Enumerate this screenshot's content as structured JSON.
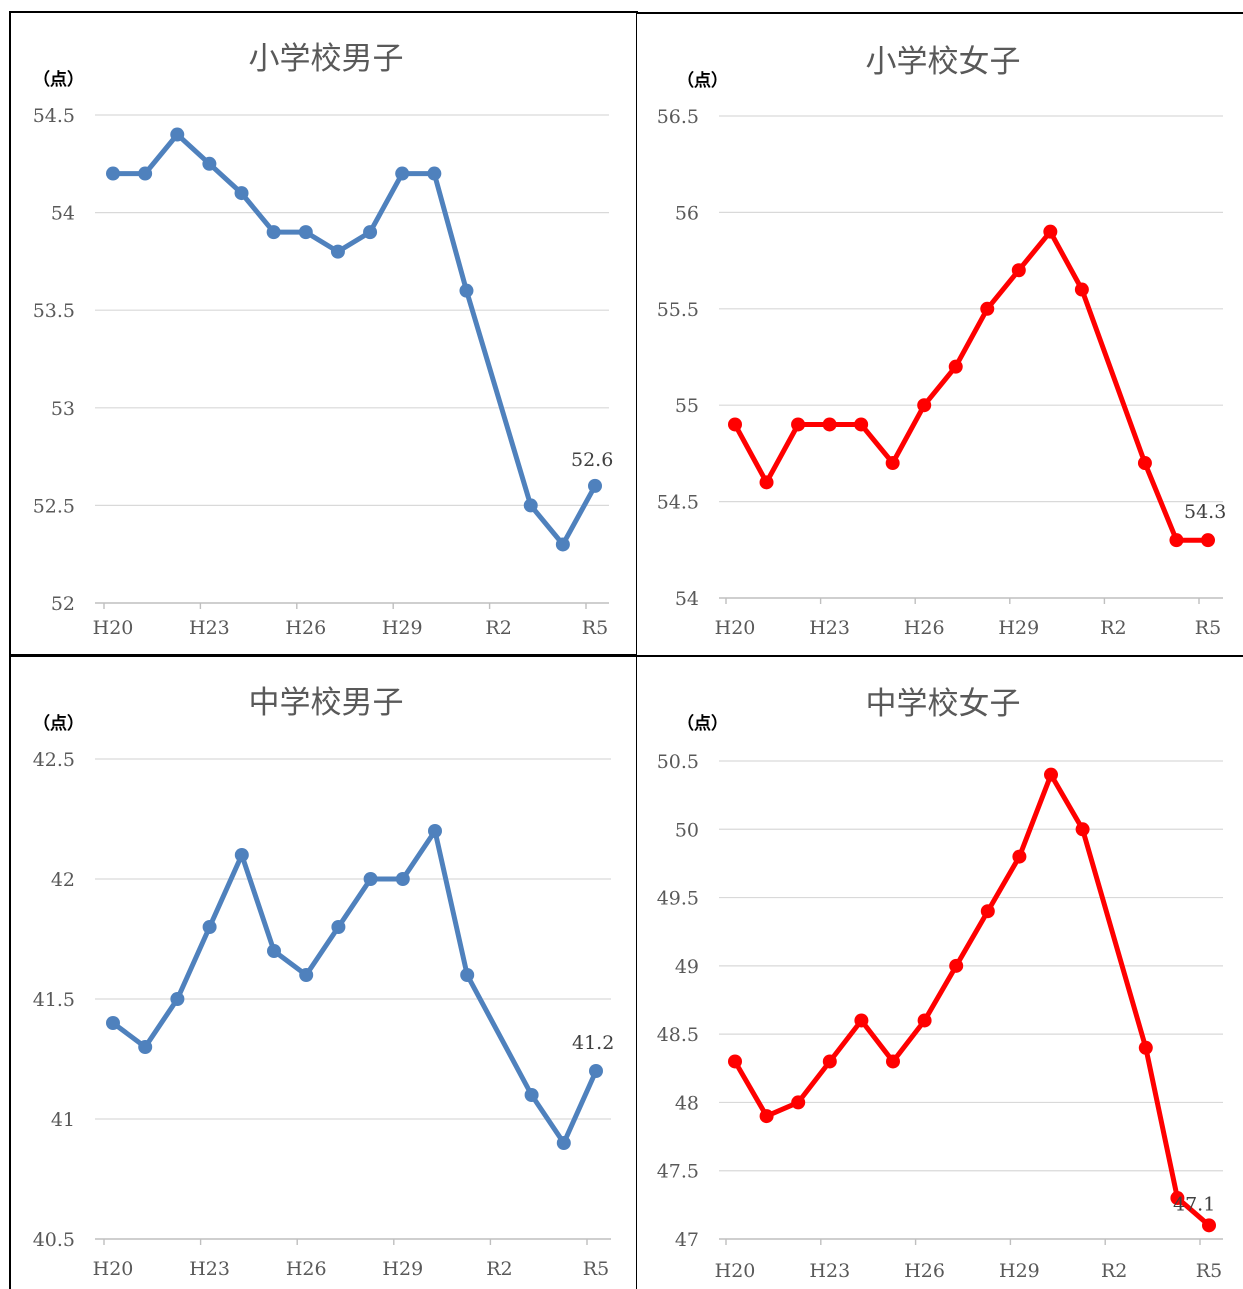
{
  "chart_data": [
    {
      "type": "line",
      "title": "小学校男子",
      "unit": "（点）",
      "color": "#4F81BD",
      "x": [
        "H20",
        "H21",
        "H22",
        "H23",
        "H24",
        "H25",
        "H26",
        "H27",
        "H28",
        "H29",
        "H30",
        "R1",
        "R2",
        "R3",
        "R4",
        "R5"
      ],
      "y": [
        54.2,
        54.2,
        54.4,
        54.25,
        54.1,
        53.9,
        53.9,
        53.8,
        53.9,
        54.2,
        54.2,
        53.6,
        null,
        52.5,
        52.3,
        52.6
      ],
      "xtick_labels": [
        "H20",
        "H23",
        "H26",
        "H29",
        "R2",
        "R5"
      ],
      "ytick_labels": [
        "52",
        "52.5",
        "53",
        "53.5",
        "54",
        "54.5"
      ],
      "ylim": [
        52,
        54.5
      ],
      "end_label": "52.6",
      "grid": true,
      "legend": false
    },
    {
      "type": "line",
      "title": "小学校女子",
      "unit": "（点）",
      "color": "#FF0000",
      "x": [
        "H20",
        "H21",
        "H22",
        "H23",
        "H24",
        "H25",
        "H26",
        "H27",
        "H28",
        "H29",
        "H30",
        "R1",
        "R2",
        "R3",
        "R4",
        "R5"
      ],
      "y": [
        54.9,
        54.6,
        54.9,
        54.9,
        54.9,
        54.7,
        55.0,
        55.2,
        55.5,
        55.7,
        55.9,
        55.6,
        null,
        54.7,
        54.3,
        54.3
      ],
      "xtick_labels": [
        "H20",
        "H23",
        "H26",
        "H29",
        "R2",
        "R5"
      ],
      "ytick_labels": [
        "54",
        "54.5",
        "55",
        "55.5",
        "56",
        "56.5"
      ],
      "ylim": [
        54,
        56.5
      ],
      "end_label": "54.3",
      "grid": true,
      "legend": false
    },
    {
      "type": "line",
      "title": "中学校男子",
      "unit": "（点）",
      "color": "#4F81BD",
      "x": [
        "H20",
        "H21",
        "H22",
        "H23",
        "H24",
        "H25",
        "H26",
        "H27",
        "H28",
        "H29",
        "H30",
        "R1",
        "R2",
        "R3",
        "R4",
        "R5"
      ],
      "y": [
        41.4,
        41.3,
        41.5,
        41.8,
        42.1,
        41.7,
        41.6,
        41.8,
        42.0,
        42.0,
        42.2,
        41.6,
        null,
        41.1,
        40.9,
        41.2
      ],
      "xtick_labels": [
        "H20",
        "H23",
        "H26",
        "H29",
        "R2",
        "R5"
      ],
      "ytick_labels": [
        "40.5",
        "41",
        "41.5",
        "42",
        "42.5"
      ],
      "ylim": [
        40.5,
        42.5
      ],
      "end_label": "41.2",
      "grid": true,
      "legend": false
    },
    {
      "type": "line",
      "title": "中学校女子",
      "unit": "（点）",
      "color": "#FF0000",
      "x": [
        "H20",
        "H21",
        "H22",
        "H23",
        "H24",
        "H25",
        "H26",
        "H27",
        "H28",
        "H29",
        "H30",
        "R1",
        "R2",
        "R3",
        "R4",
        "R5"
      ],
      "y": [
        48.3,
        47.9,
        48.0,
        48.3,
        48.6,
        48.3,
        48.6,
        49.0,
        49.4,
        49.8,
        50.4,
        50.0,
        null,
        48.4,
        47.3,
        47.1
      ],
      "xtick_labels": [
        "H20",
        "H23",
        "H26",
        "H29",
        "R2",
        "R5"
      ],
      "ytick_labels": [
        "47",
        "47.5",
        "48",
        "48.5",
        "49",
        "49.5",
        "50",
        "50.5"
      ],
      "ylim": [
        47,
        50.5
      ],
      "end_label": "47.1",
      "grid": true,
      "legend": false
    }
  ]
}
